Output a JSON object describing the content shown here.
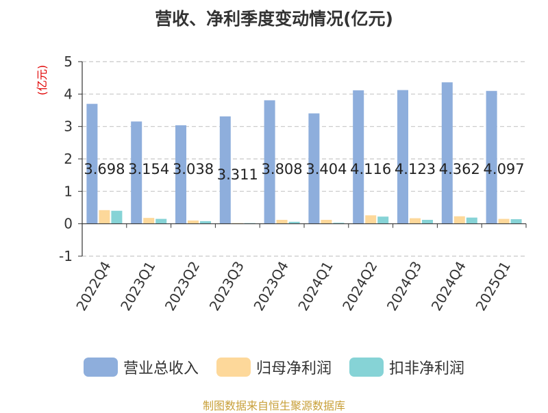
{
  "chart_data": {
    "type": "bar",
    "title": "营收、净利季度变动情况(亿元)",
    "unit_label": "(亿元)",
    "categories": [
      "2022Q4",
      "2023Q1",
      "2023Q2",
      "2023Q3",
      "2023Q4",
      "2024Q1",
      "2024Q2",
      "2024Q3",
      "2024Q4",
      "2025Q1"
    ],
    "series": [
      {
        "name": "营业总收入",
        "color": "#8eaedc",
        "values": [
          3.698,
          3.154,
          3.038,
          3.311,
          3.808,
          3.404,
          4.116,
          4.123,
          4.362,
          4.097
        ]
      },
      {
        "name": "归母净利润",
        "color": "#fdd89a",
        "values": [
          0.42,
          0.18,
          0.1,
          0.02,
          0.12,
          0.12,
          0.26,
          0.17,
          0.23,
          0.15
        ]
      },
      {
        "name": "扣非净利润",
        "color": "#86d3d6",
        "values": [
          0.4,
          0.15,
          0.08,
          0.02,
          0.06,
          0.03,
          0.22,
          0.12,
          0.19,
          0.14
        ]
      }
    ],
    "data_labels": [
      "3.698",
      "3.154",
      "3.038",
      "3.311",
      "3.808",
      "3.404",
      "4.116",
      "4.123",
      "4.362",
      "4.097"
    ],
    "ylim": [
      -1,
      5
    ],
    "yticks": [
      -1,
      0,
      1,
      2,
      3,
      4,
      5
    ],
    "grid": true,
    "legend_position": "bottom"
  },
  "source": "制图数据来自恒生聚源数据库"
}
